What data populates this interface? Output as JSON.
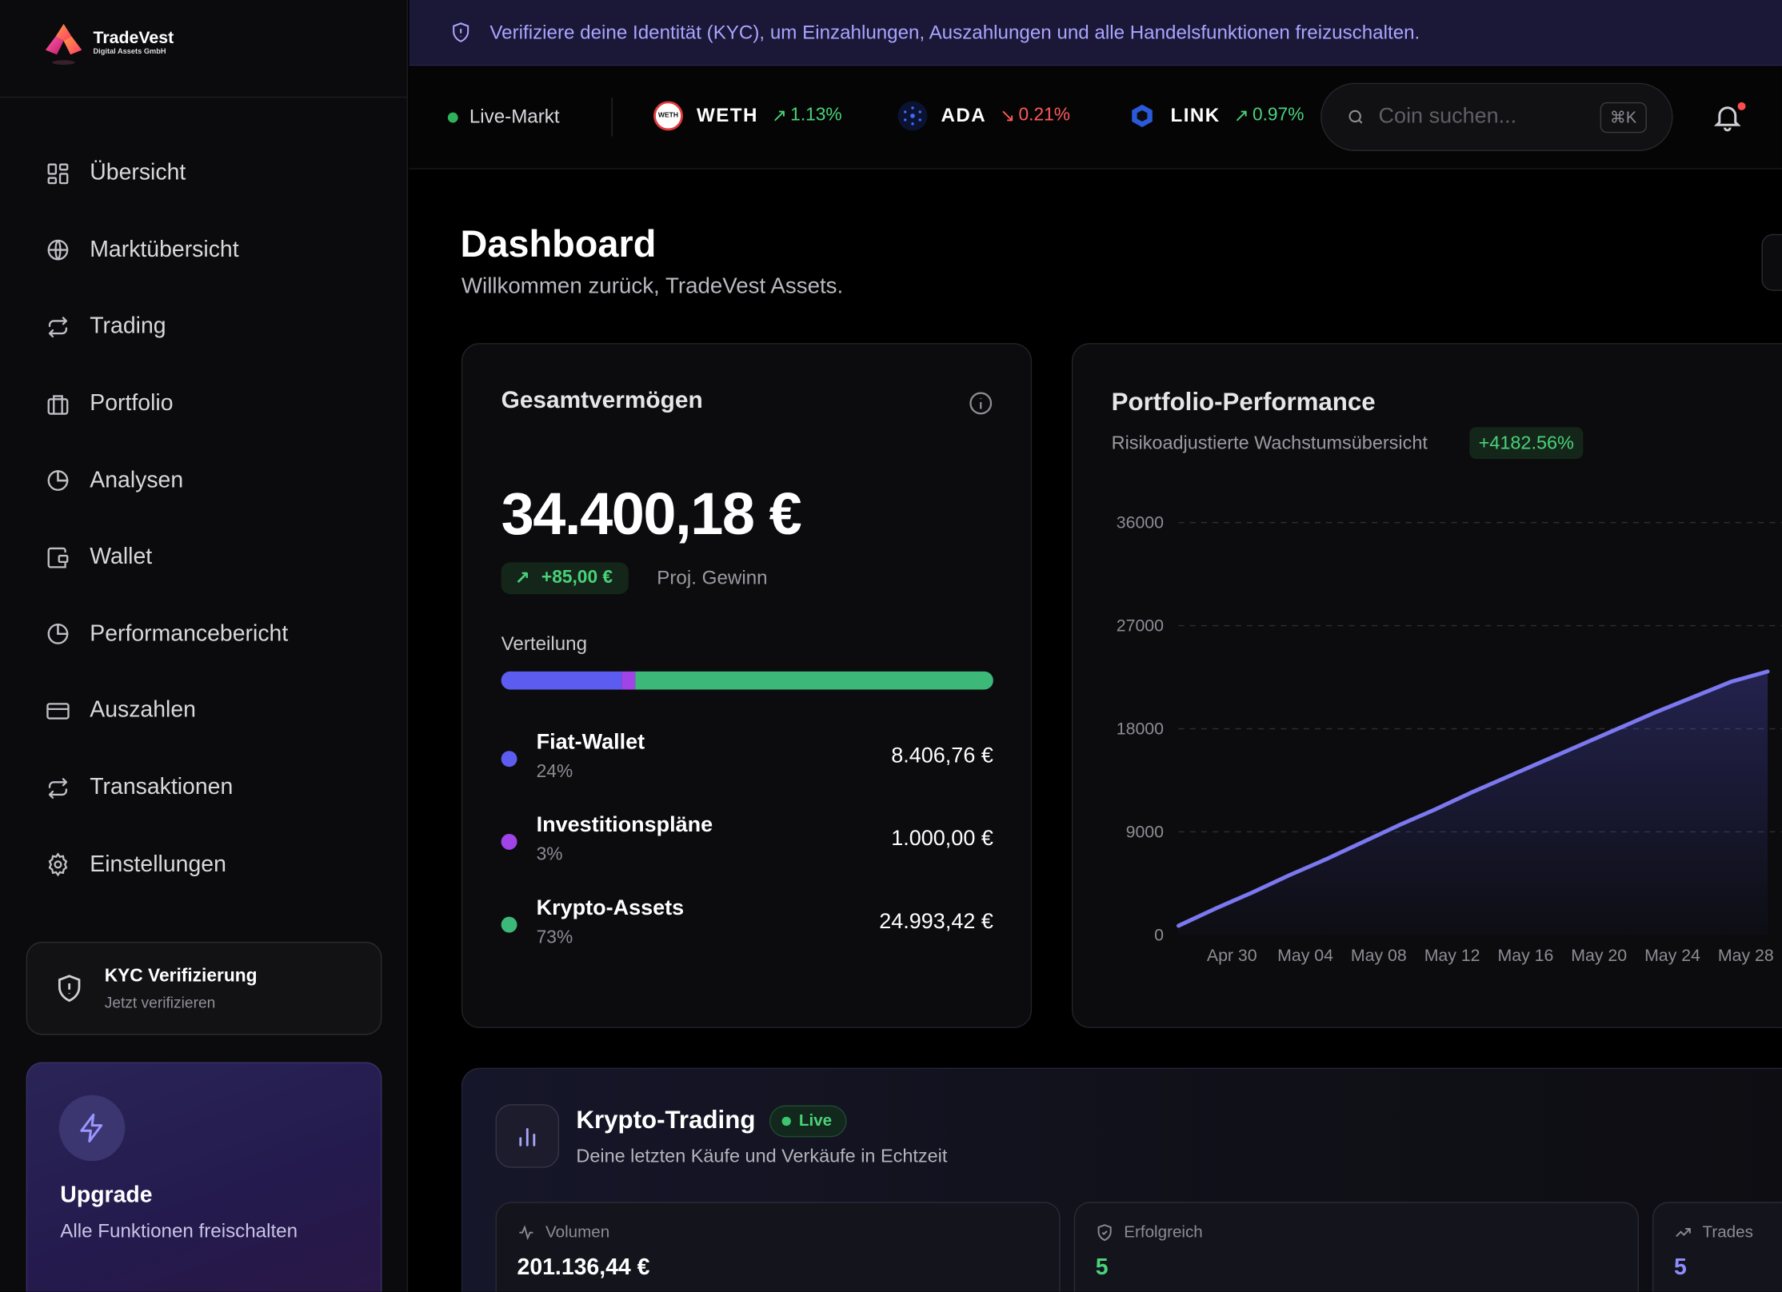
{
  "brand": {
    "name": "TradeVest",
    "subtitle": "Digital Assets GmbH"
  },
  "sidebar": {
    "items": [
      {
        "label": "Übersicht",
        "icon": "grid-icon"
      },
      {
        "label": "Marktübersicht",
        "icon": "globe-icon"
      },
      {
        "label": "Trading",
        "icon": "arrows-swap-icon"
      },
      {
        "label": "Portfolio",
        "icon": "briefcase-icon"
      },
      {
        "label": "Analysen",
        "icon": "pie-chart-icon"
      },
      {
        "label": "Wallet",
        "icon": "wallet-icon"
      },
      {
        "label": "Performancebericht",
        "icon": "pie-chart-icon"
      },
      {
        "label": "Auszahlen",
        "icon": "credit-card-icon"
      },
      {
        "label": "Transaktionen",
        "icon": "arrows-swap-icon"
      },
      {
        "label": "Einstellungen",
        "icon": "gear-icon"
      }
    ],
    "kyc": {
      "title": "KYC Verifizierung",
      "subtitle": "Jetzt verifizieren"
    },
    "upgrade": {
      "title": "Upgrade",
      "subtitle": "Alle Funktionen freischalten"
    }
  },
  "banner": {
    "text": "Verifiziere deine Identität (KYC), um Einzahlungen, Auszahlungen und alle Handelsfunktionen freizuschalten."
  },
  "topbar": {
    "live_label": "Live-Markt",
    "tickers": [
      {
        "symbol": "WETH",
        "change": "1.13%",
        "direction": "up"
      },
      {
        "symbol": "ADA",
        "change": "0.21%",
        "direction": "down"
      },
      {
        "symbol": "LINK",
        "change": "0.97%",
        "direction": "up"
      }
    ],
    "search_placeholder": "Coin suchen...",
    "search_shortcut": "⌘K"
  },
  "page": {
    "title": "Dashboard",
    "subtitle": "Willkommen zurück, TradeVest Assets."
  },
  "assets": {
    "title": "Gesamtvermögen",
    "total": "34.400,18 €",
    "gain": "+85,00 €",
    "gain_label": "Proj. Gewinn",
    "distribution_label": "Verteilung",
    "distribution": [
      {
        "name": "Fiat-Wallet",
        "percent": "24%",
        "value": "8.406,76 €",
        "share": 24.4,
        "color": "#5d5cf0"
      },
      {
        "name": "Investitionspläne",
        "percent": "3%",
        "value": "1.000,00 €",
        "share": 2.9,
        "color": "#a044e8"
      },
      {
        "name": "Krypto-Assets",
        "percent": "73%",
        "value": "24.993,42 €",
        "share": 72.7,
        "color": "#3cb878"
      }
    ]
  },
  "performance": {
    "title": "Portfolio-Performance",
    "subtitle": "Risikoadjustierte Wachstumsübersicht",
    "badge": "+4182.56%"
  },
  "chart_data": {
    "type": "area",
    "title": "Portfolio-Performance",
    "xlabel": "",
    "ylabel": "",
    "ylim": [
      0,
      36000
    ],
    "yticks": [
      0,
      9000,
      18000,
      27000,
      36000
    ],
    "xticks": [
      "Apr 30",
      "May 04",
      "May 08",
      "May 12",
      "May 16",
      "May 20",
      "May 24",
      "May 28"
    ],
    "grid": true,
    "series": [
      {
        "color": "#7b78f0",
        "x": [
          "Apr 28",
          "Apr 30",
          "May 02",
          "May 04",
          "May 06",
          "May 08",
          "May 10",
          "May 12",
          "May 14",
          "May 16",
          "May 18",
          "May 20",
          "May 22",
          "May 24",
          "May 26",
          "May 28",
          "May 30"
        ],
        "values": [
          800,
          2300,
          3700,
          5200,
          6600,
          8100,
          9600,
          11000,
          12500,
          13900,
          15300,
          16700,
          18100,
          19500,
          20800,
          22100,
          23000
        ]
      }
    ]
  },
  "trading": {
    "title": "Krypto-Trading",
    "live_label": "Live",
    "subtitle": "Deine letzten Käufe und Verkäufe in Echtzeit",
    "stats": [
      {
        "label": "Volumen",
        "value": "201.136,44 €",
        "icon": "activity-icon",
        "color": "#ffffff"
      },
      {
        "label": "Erfolgreich",
        "value": "5",
        "icon": "shield-check-icon",
        "color": "#4ad27a"
      },
      {
        "label": "Trades",
        "value": "5",
        "icon": "trending-up-icon",
        "color": "#8f8cff"
      }
    ]
  }
}
